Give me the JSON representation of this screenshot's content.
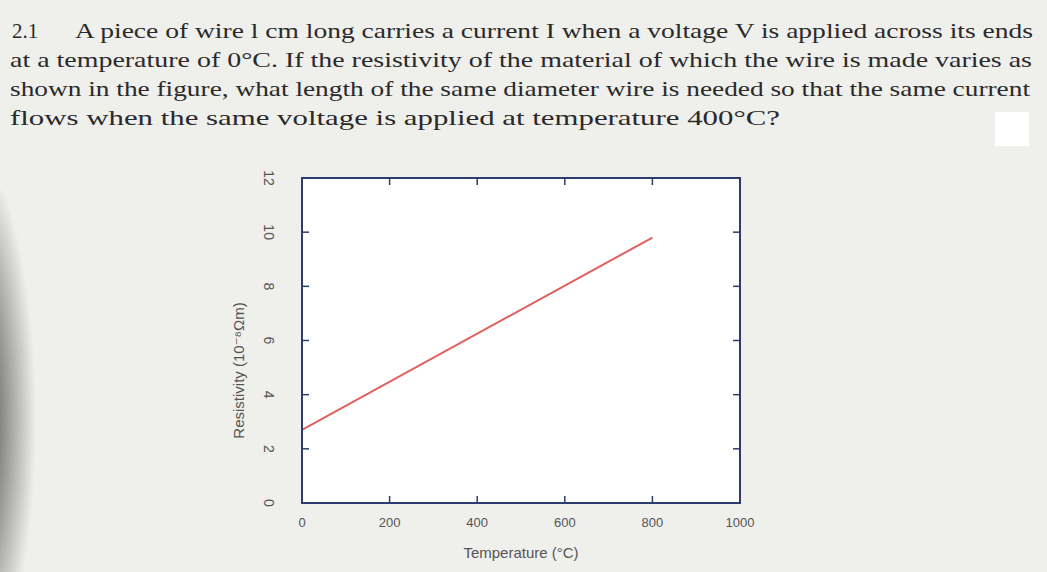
{
  "problem": {
    "number": "2.1",
    "lines": [
      "A piece of wire l cm long carries a current I when a voltage V is applied across its ends",
      "at a temperature of 0°C. If the resistivity of the material of which the wire is made varies as",
      "shown in the figure, what length of the same diameter wire is needed so that the same current",
      "flows when the same voltage is applied at temperature 400°C?"
    ]
  },
  "chart_data": {
    "type": "line",
    "x_label": "Temperature (°C)",
    "y_label": "Resistivity (10⁻⁸Ωm)",
    "x": [
      0,
      800
    ],
    "values": [
      2.7,
      9.8
    ],
    "color": "#e0605e",
    "xlim": [
      0,
      1000
    ],
    "xticks": [
      0,
      200,
      400,
      600,
      800,
      1000
    ],
    "ylim": [
      0,
      12
    ],
    "yticks": [
      0,
      2,
      4,
      6,
      8,
      10,
      12
    ],
    "grid": false
  }
}
